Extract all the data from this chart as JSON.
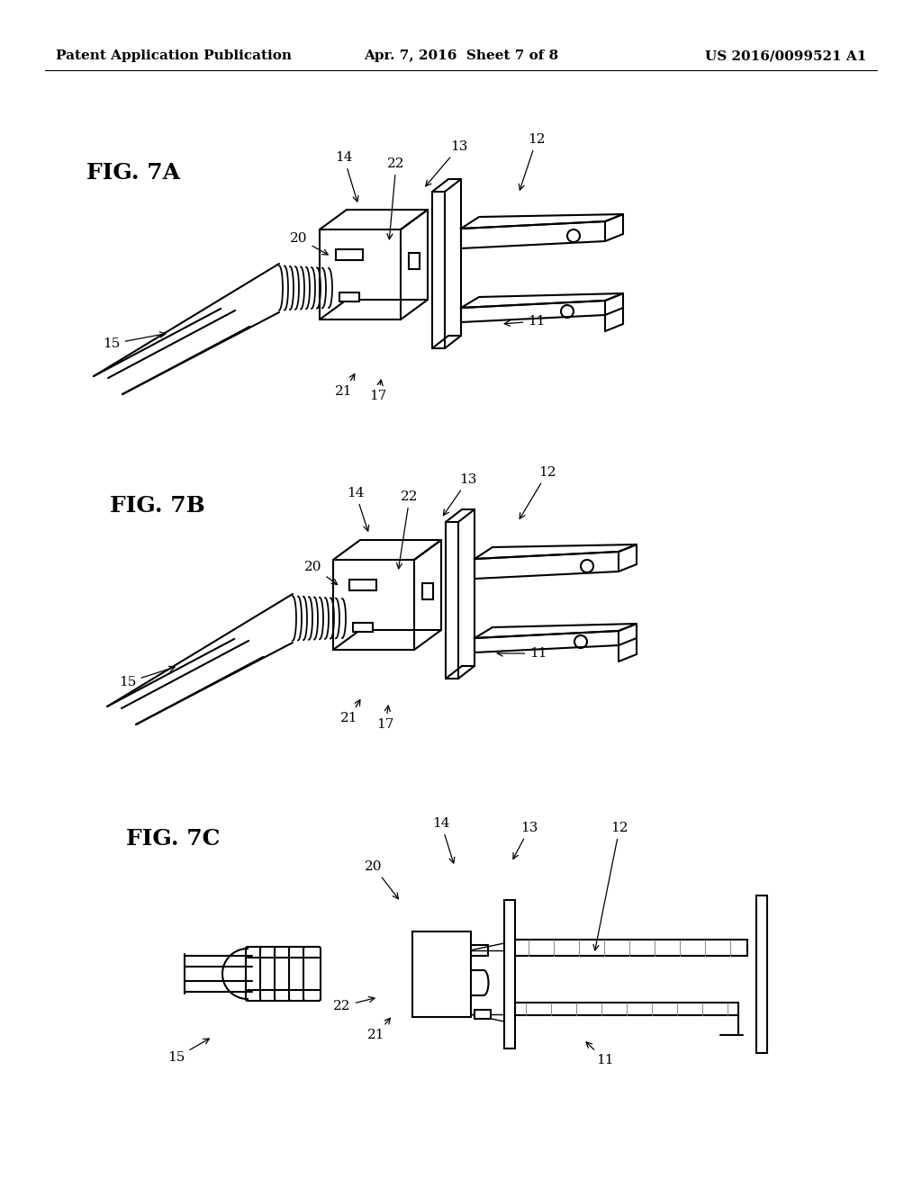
{
  "background_color": "#ffffff",
  "header_left": "Patent Application Publication",
  "header_center": "Apr. 7, 2016  Sheet 7 of 8",
  "header_right": "US 2016/0099521 A1",
  "header_fontsize": 11,
  "fig_label_fontsize": 18,
  "annotation_fontsize": 11
}
